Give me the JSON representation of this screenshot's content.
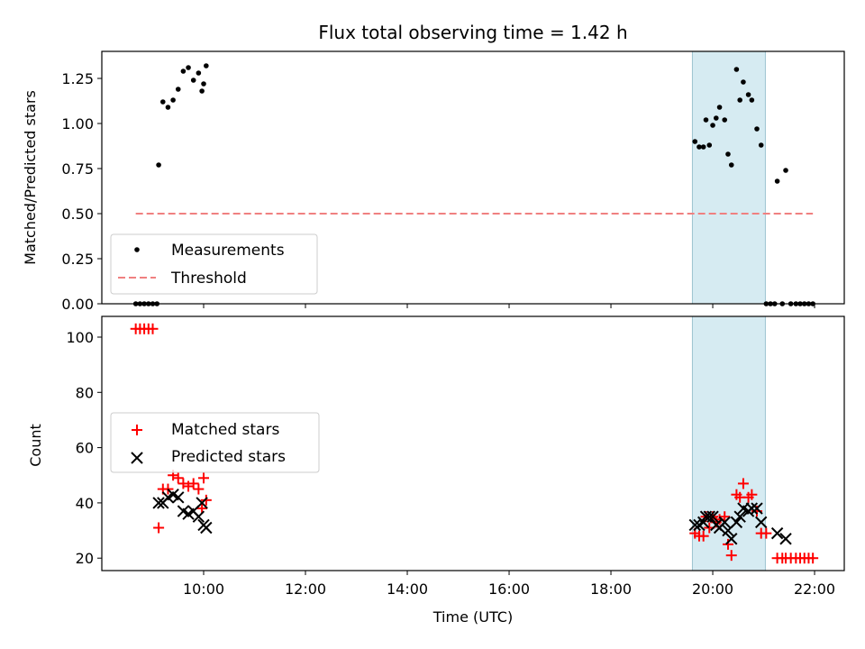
{
  "chart_data": [
    {
      "type": "scatter",
      "title": "Flux total observing time = 1.42 h",
      "ylabel": "Matched/Predicted stars",
      "xlim": [
        "08:00",
        "22:35"
      ],
      "ylim": [
        0,
        1.4
      ],
      "yticks": [
        "0.00",
        "0.25",
        "0.50",
        "0.75",
        "1.00",
        "1.25"
      ],
      "xticks": [
        "10:00",
        "12:00",
        "14:00",
        "16:00",
        "18:00",
        "20:00",
        "22:00"
      ],
      "shaded_interval": [
        "19:36",
        "21:02"
      ],
      "legend": {
        "placement": "lower-left",
        "entries": [
          "Measurements",
          "Threshold"
        ]
      },
      "threshold": {
        "name": "Threshold",
        "y": 0.5,
        "x_start": "08:40",
        "x_end": "21:58",
        "color": "#f08080"
      },
      "series": [
        {
          "name": "Measurements",
          "color": "#000000",
          "points": [
            [
              "08:40",
              0.0
            ],
            [
              "08:45",
              0.0
            ],
            [
              "08:50",
              0.0
            ],
            [
              "08:55",
              0.0
            ],
            [
              "09:00",
              0.0
            ],
            [
              "09:05",
              0.0
            ],
            [
              "09:07",
              0.77
            ],
            [
              "09:12",
              1.12
            ],
            [
              "09:18",
              1.09
            ],
            [
              "09:24",
              1.13
            ],
            [
              "09:30",
              1.19
            ],
            [
              "09:36",
              1.29
            ],
            [
              "09:42",
              1.31
            ],
            [
              "09:48",
              1.24
            ],
            [
              "09:54",
              1.28
            ],
            [
              "10:00",
              1.22
            ],
            [
              "09:58",
              1.18
            ],
            [
              "10:03",
              1.32
            ],
            [
              "19:39",
              0.9
            ],
            [
              "19:44",
              0.87
            ],
            [
              "19:49",
              0.87
            ],
            [
              "19:52",
              1.02
            ],
            [
              "19:56",
              0.88
            ],
            [
              "20:00",
              0.99
            ],
            [
              "20:04",
              1.03
            ],
            [
              "20:08",
              1.09
            ],
            [
              "20:14",
              1.02
            ],
            [
              "20:18",
              0.83
            ],
            [
              "20:22",
              0.77
            ],
            [
              "20:28",
              1.3
            ],
            [
              "20:32",
              1.13
            ],
            [
              "20:36",
              1.23
            ],
            [
              "20:42",
              1.16
            ],
            [
              "20:46",
              1.13
            ],
            [
              "20:52",
              0.97
            ],
            [
              "20:57",
              0.88
            ],
            [
              "21:03",
              0.0
            ],
            [
              "21:08",
              0.0
            ],
            [
              "21:13",
              0.0
            ],
            [
              "21:16",
              0.68
            ],
            [
              "21:22",
              0.0
            ],
            [
              "21:26",
              0.74
            ],
            [
              "21:32",
              0.0
            ],
            [
              "21:38",
              0.0
            ],
            [
              "21:43",
              0.0
            ],
            [
              "21:48",
              0.0
            ],
            [
              "21:53",
              0.0
            ],
            [
              "21:58",
              0.0
            ]
          ]
        }
      ]
    },
    {
      "type": "scatter",
      "ylabel": "Count",
      "xlabel": "Time (UTC)",
      "xlim": [
        "08:00",
        "22:35"
      ],
      "ylim": [
        15.5,
        107.5
      ],
      "yticks": [
        "20",
        "40",
        "60",
        "80",
        "100"
      ],
      "xticks": [
        "10:00",
        "12:00",
        "14:00",
        "16:00",
        "18:00",
        "20:00",
        "22:00"
      ],
      "shaded_interval": [
        "19:36",
        "21:02"
      ],
      "legend": {
        "placement": "center-left",
        "entries": [
          "Matched stars",
          "Predicted stars"
        ]
      },
      "series": [
        {
          "name": "Matched stars",
          "marker": "+",
          "color": "#ff0000",
          "points": [
            [
              "08:40",
              103
            ],
            [
              "08:45",
              103
            ],
            [
              "08:50",
              103
            ],
            [
              "08:55",
              103
            ],
            [
              "09:00",
              103
            ],
            [
              "09:07",
              31
            ],
            [
              "09:12",
              45
            ],
            [
              "09:18",
              45
            ],
            [
              "09:24",
              50
            ],
            [
              "09:30",
              49
            ],
            [
              "09:36",
              47
            ],
            [
              "09:42",
              46
            ],
            [
              "09:48",
              47
            ],
            [
              "09:54",
              45
            ],
            [
              "10:00",
              49
            ],
            [
              "09:58",
              38
            ],
            [
              "10:03",
              41
            ],
            [
              "19:39",
              29
            ],
            [
              "19:44",
              28
            ],
            [
              "19:49",
              28
            ],
            [
              "19:52",
              35
            ],
            [
              "19:56",
              31
            ],
            [
              "20:00",
              35
            ],
            [
              "20:04",
              33
            ],
            [
              "20:08",
              34
            ],
            [
              "20:14",
              35
            ],
            [
              "20:18",
              25
            ],
            [
              "20:22",
              21
            ],
            [
              "20:28",
              43
            ],
            [
              "20:32",
              42
            ],
            [
              "20:36",
              47
            ],
            [
              "20:42",
              42
            ],
            [
              "20:46",
              43
            ],
            [
              "20:52",
              37
            ],
            [
              "20:57",
              29
            ],
            [
              "21:03",
              29
            ],
            [
              "21:16",
              20
            ],
            [
              "21:22",
              20
            ],
            [
              "21:26",
              20
            ],
            [
              "21:32",
              20
            ],
            [
              "21:38",
              20
            ],
            [
              "21:43",
              20
            ],
            [
              "21:48",
              20
            ],
            [
              "21:53",
              20
            ],
            [
              "21:58",
              20
            ]
          ]
        },
        {
          "name": "Predicted stars",
          "marker": "x",
          "color": "#000000",
          "points": [
            [
              "09:07",
              40
            ],
            [
              "09:12",
              40
            ],
            [
              "09:18",
              42
            ],
            [
              "09:24",
              43
            ],
            [
              "09:30",
              42
            ],
            [
              "09:36",
              37
            ],
            [
              "09:42",
              36
            ],
            [
              "09:48",
              37
            ],
            [
              "09:54",
              35
            ],
            [
              "09:58",
              40
            ],
            [
              "10:00",
              32
            ],
            [
              "10:03",
              31
            ],
            [
              "19:39",
              32
            ],
            [
              "19:44",
              32
            ],
            [
              "19:49",
              33
            ],
            [
              "19:52",
              35
            ],
            [
              "19:56",
              35
            ],
            [
              "20:00",
              35
            ],
            [
              "20:04",
              32
            ],
            [
              "20:08",
              31
            ],
            [
              "20:14",
              33
            ],
            [
              "20:18",
              30
            ],
            [
              "20:22",
              27
            ],
            [
              "20:28",
              33
            ],
            [
              "20:32",
              35
            ],
            [
              "20:36",
              38
            ],
            [
              "20:42",
              37
            ],
            [
              "20:46",
              38
            ],
            [
              "20:52",
              38
            ],
            [
              "20:57",
              33
            ],
            [
              "21:16",
              29
            ],
            [
              "21:26",
              27
            ]
          ]
        }
      ]
    }
  ]
}
